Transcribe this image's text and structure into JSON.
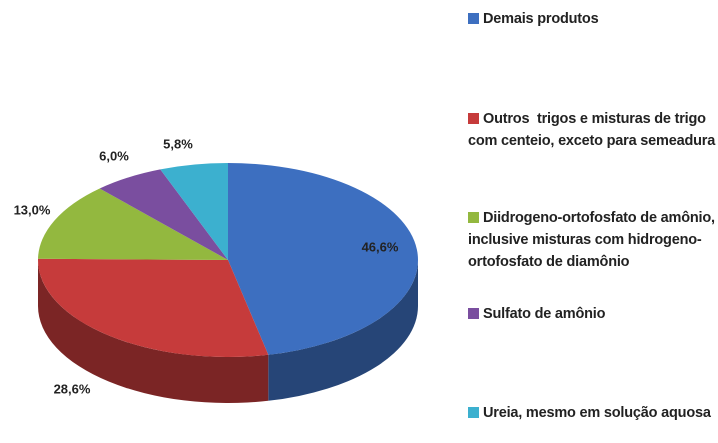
{
  "chart_data": {
    "type": "pie3d",
    "categories": [
      "Demais produtos",
      "Outros  trigos e misturas de trigo com centeio, exceto para semeadura",
      "Diidrogeno-ortofosfato de amônio, inclusive misturas com hidrogeno-ortofosfato de diamônio",
      "Sulfato de amônio",
      "Ureia, mesmo em solução aquosa"
    ],
    "values": [
      46.6,
      28.6,
      13.0,
      6.0,
      5.8
    ],
    "value_labels": [
      "46,6%",
      "28,6%",
      "13,0%",
      "6,0%",
      "5,8%"
    ],
    "colors": [
      "#3d6fc0",
      "#c63b3b",
      "#93b83f",
      "#7a4e9f",
      "#3cb0cf"
    ],
    "legend": "right"
  }
}
